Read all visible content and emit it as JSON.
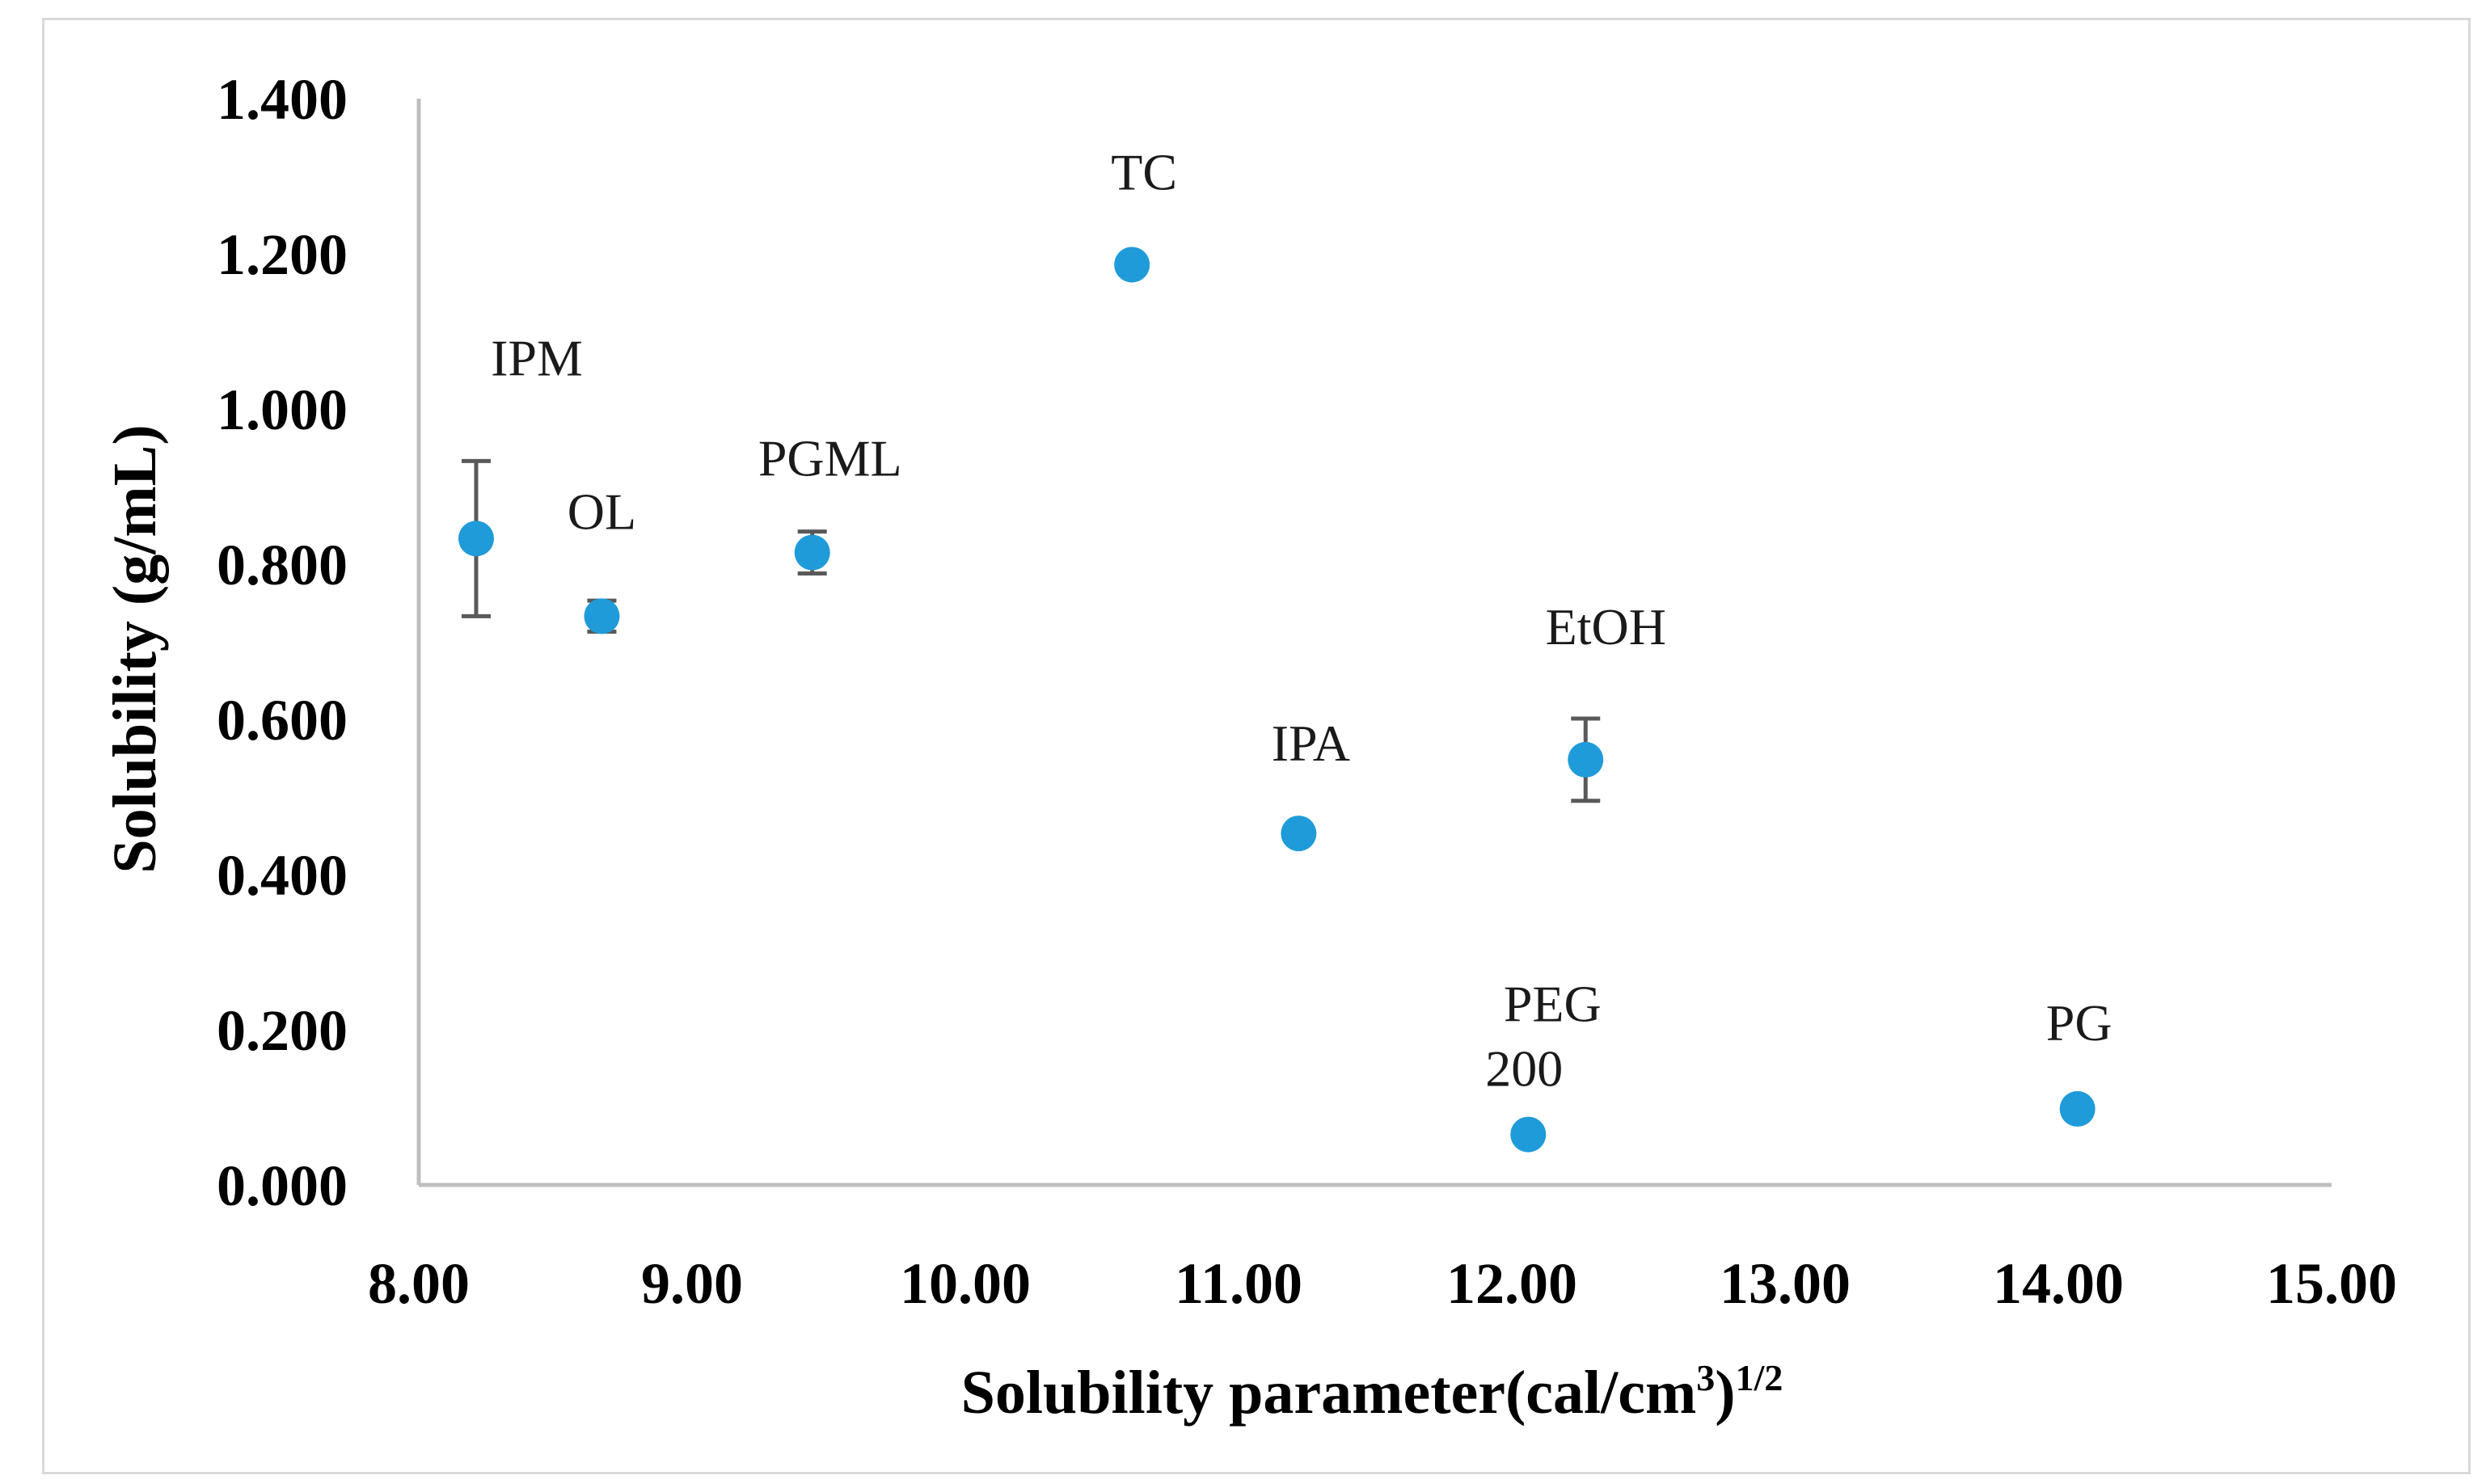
{
  "chart_data": {
    "type": "scatter",
    "title": "",
    "xlabel": "Solubility parameter(cal/cm",
    "xlabel_sup1": "3",
    "xlabel_close": ")",
    "xlabel_sup2": "1/2",
    "ylabel": "Solubility (g/mL)",
    "xlim": [
      8.0,
      15.0
    ],
    "ylim": [
      0.0,
      1.4
    ],
    "x_ticks": [
      "8.00",
      "9.00",
      "10.00",
      "11.00",
      "12.00",
      "13.00",
      "14.00",
      "15.00"
    ],
    "y_ticks": [
      "0.000",
      "0.200",
      "0.400",
      "0.600",
      "0.800",
      "1.000",
      "1.200",
      "1.400"
    ],
    "grid": false,
    "colors": {
      "point": "#1f9bd9",
      "error_bar": "#595959",
      "axis": "#bfbfbf"
    },
    "points": [
      {
        "label": "IPM",
        "x": 8.21,
        "y": 0.833,
        "err": 0.1
      },
      {
        "label": "OL",
        "x": 8.67,
        "y": 0.733,
        "err": 0.02
      },
      {
        "label": "PGML",
        "x": 9.44,
        "y": 0.815,
        "err": 0.027
      },
      {
        "label": "TC",
        "x": 10.61,
        "y": 1.186,
        "err": 0
      },
      {
        "label": "IPA",
        "x": 11.22,
        "y": 0.453,
        "err": 0
      },
      {
        "label": "EtOH",
        "x": 12.27,
        "y": 0.548,
        "err": 0.053
      },
      {
        "label": "PEG",
        "label2": "200",
        "x": 12.06,
        "y": 0.065,
        "err": 0
      },
      {
        "label": "PG",
        "x": 14.07,
        "y": 0.098,
        "err": 0
      }
    ]
  }
}
